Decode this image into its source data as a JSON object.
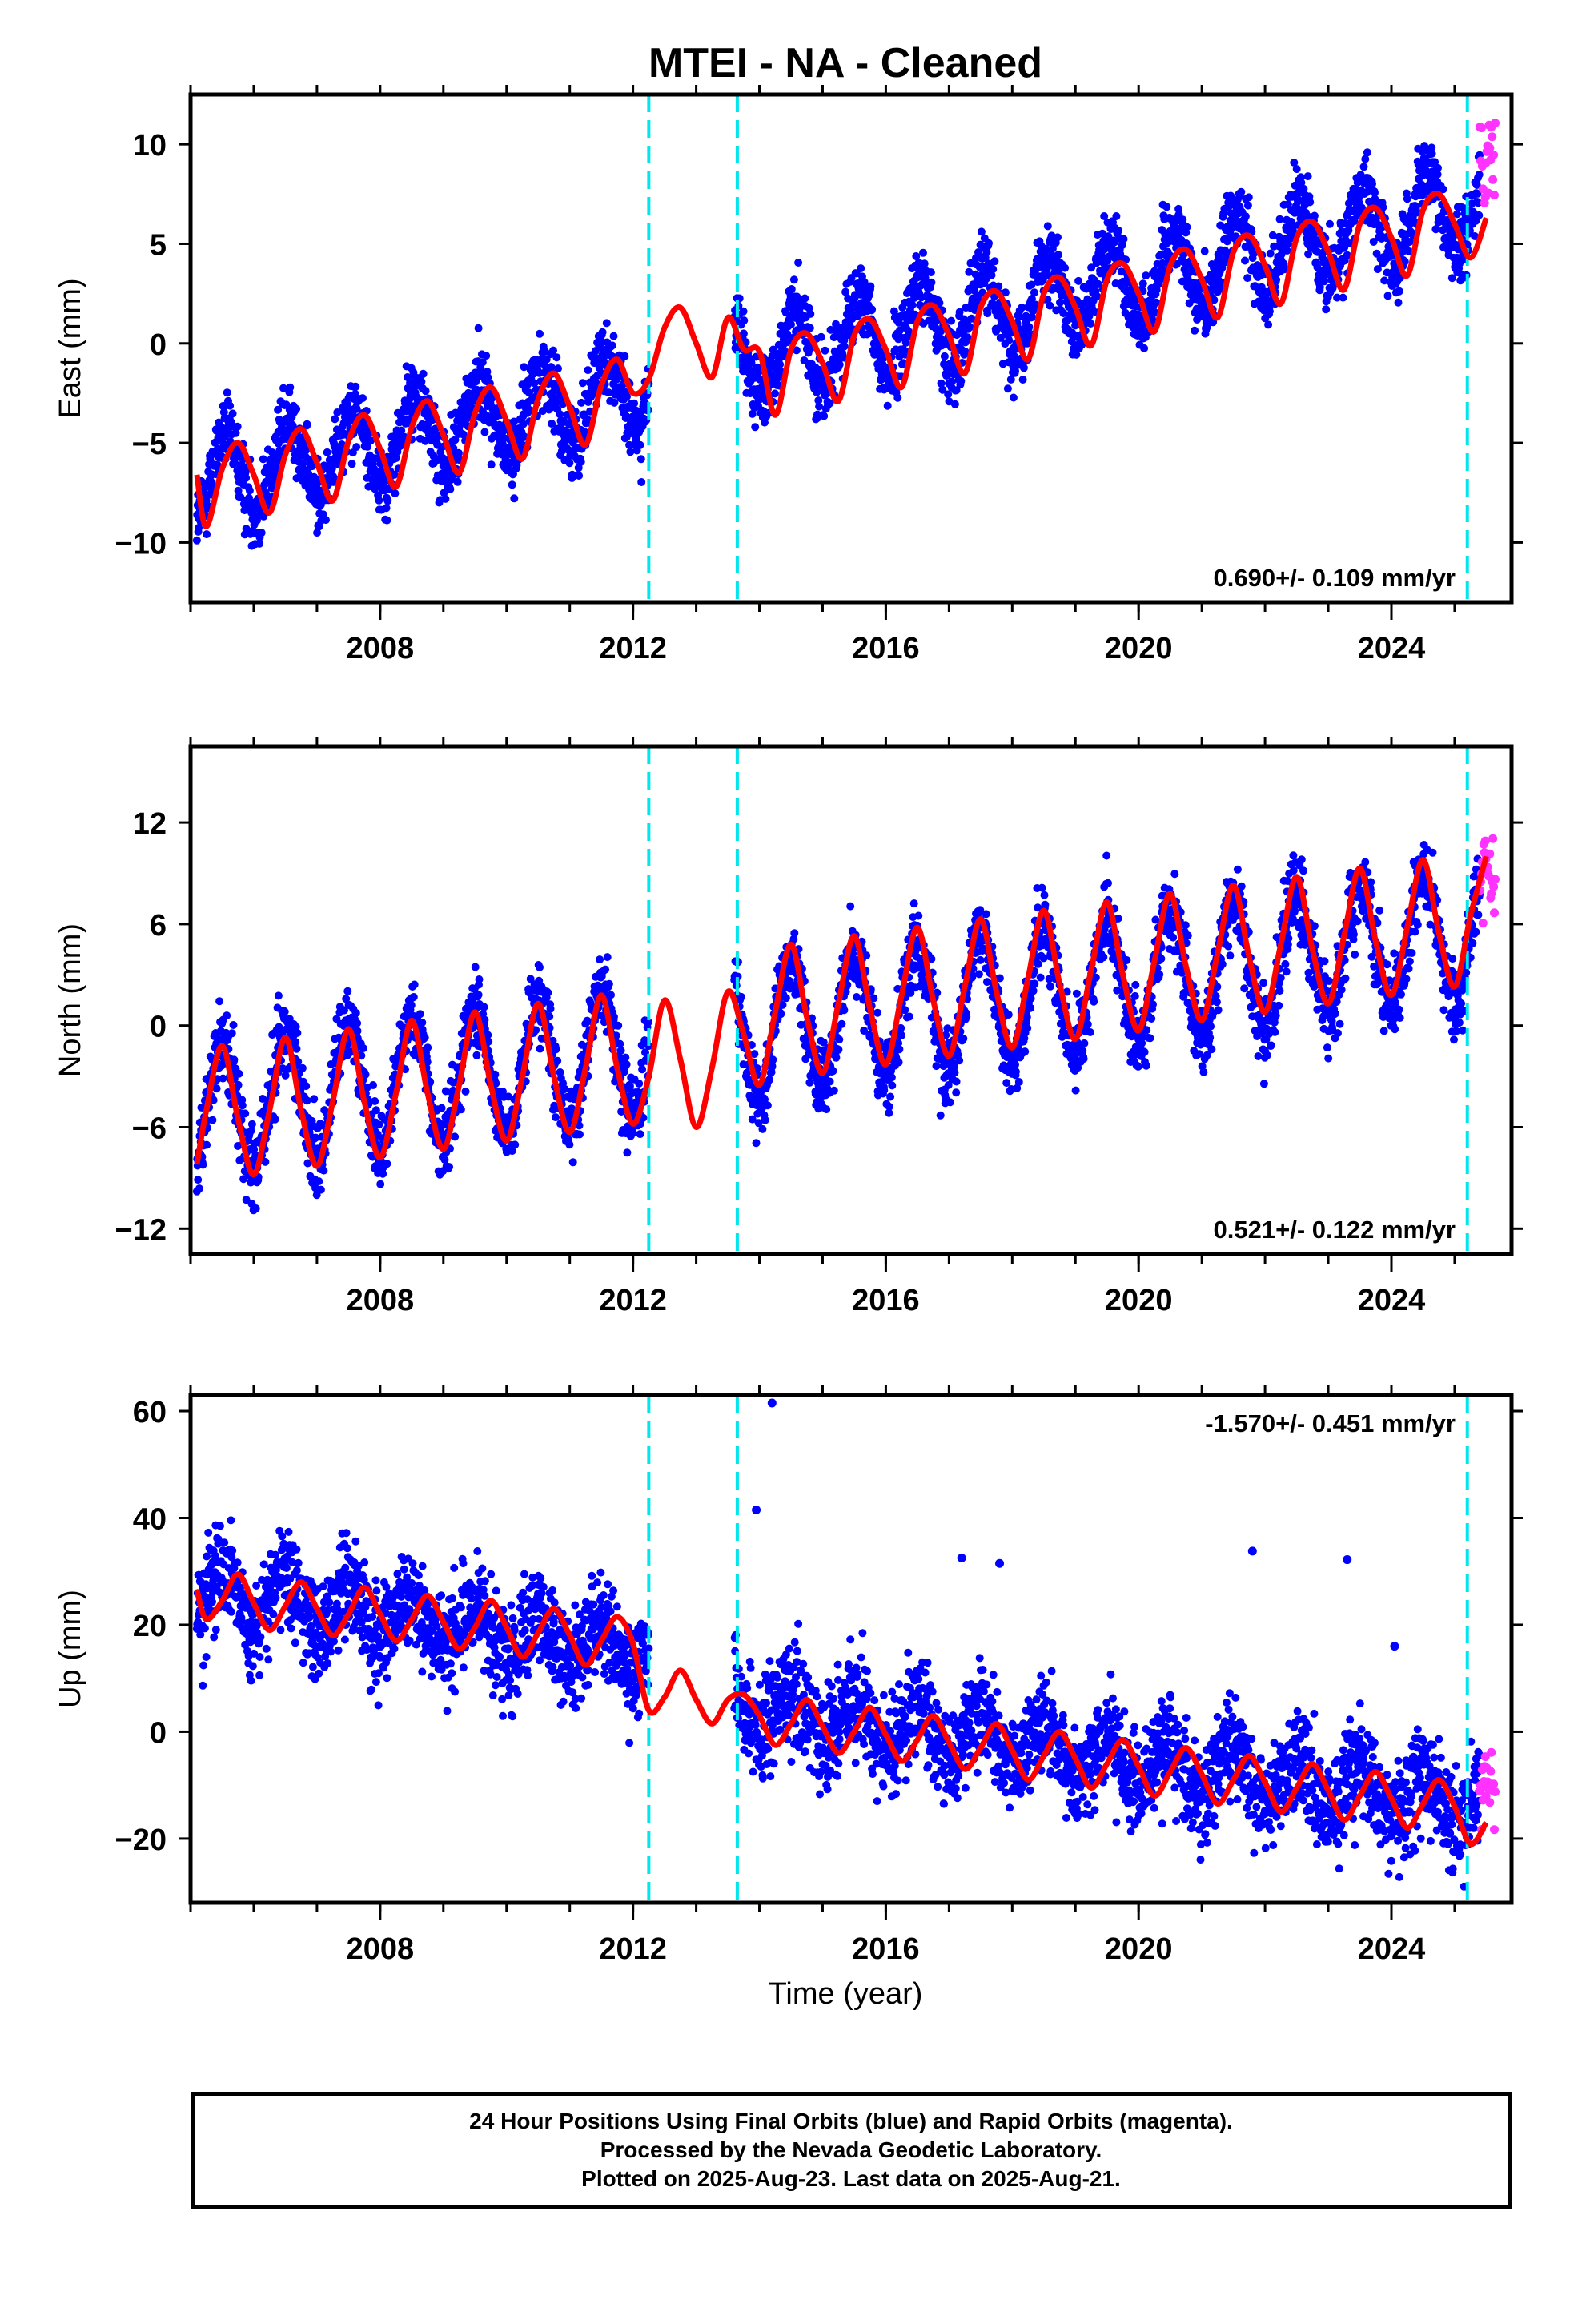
{
  "title": "MTEI  - NA - Cleaned",
  "colors": {
    "final_orbits": "#0000ff",
    "rapid_orbits": "#ff33ff",
    "model": "#ff0000",
    "offsets": "#00e5ee",
    "frame": "#000000"
  },
  "chart_data": [
    {
      "type": "scatter",
      "panel": "east",
      "ylabel": "East (mm)",
      "xlim": [
        2005.0,
        2025.9
      ],
      "ylim": [
        -13,
        12.5
      ],
      "yticks": [
        -10,
        -5,
        0,
        5,
        10
      ],
      "ytick_labels": [
        "−10",
        "−5",
        "0",
        "5",
        "10"
      ],
      "xticks": [
        2008,
        2012,
        2016,
        2020,
        2024
      ],
      "rate_label": "0.690+/- 0.109 mm/yr",
      "rate_position": "bottom-right",
      "offsets": [
        2012.25,
        2013.65,
        2025.2
      ],
      "data_span": [
        2005.1,
        2025.65
      ],
      "gap": [
        2012.25,
        2013.6
      ],
      "rapid_span": [
        2025.4,
        2025.65
      ],
      "trend": {
        "value_at_start": -7.0,
        "rate": 0.69,
        "annual_amplitude": 2.0,
        "phase_peak": 0.55
      },
      "model": {
        "x": [
          2005.1,
          2005.25,
          2005.5,
          2005.75,
          2006.0,
          2006.25,
          2006.5,
          2006.75,
          2007.0,
          2007.25,
          2007.5,
          2007.75,
          2008.0,
          2008.25,
          2008.5,
          2008.75,
          2009.0,
          2009.25,
          2009.5,
          2009.75,
          2010.0,
          2010.25,
          2010.5,
          2010.75,
          2011.0,
          2011.25,
          2011.5,
          2011.75,
          2012.0,
          2012.25,
          2012.5,
          2012.75,
          2013.0,
          2013.25,
          2013.5,
          2013.75,
          2014.0,
          2014.25,
          2014.5,
          2014.75,
          2015.0,
          2015.25,
          2015.5,
          2015.75,
          2016.0,
          2016.25,
          2016.5,
          2016.75,
          2017.0,
          2017.25,
          2017.5,
          2017.75,
          2018.0,
          2018.25,
          2018.5,
          2018.75,
          2019.0,
          2019.25,
          2019.5,
          2019.75,
          2020.0,
          2020.25,
          2020.5,
          2020.75,
          2021.0,
          2021.25,
          2021.5,
          2021.75,
          2022.0,
          2022.25,
          2022.5,
          2022.75,
          2023.0,
          2023.25,
          2023.5,
          2023.75,
          2024.0,
          2024.25,
          2024.5,
          2024.75,
          2025.0,
          2025.25,
          2025.5
        ],
        "y": [
          -6.6,
          -9.2,
          -6.3,
          -5.0,
          -6.6,
          -8.5,
          -5.6,
          -4.3,
          -6.0,
          -7.9,
          -4.9,
          -3.6,
          -5.3,
          -7.2,
          -4.2,
          -2.9,
          -4.6,
          -6.5,
          -3.5,
          -2.2,
          -3.9,
          -5.8,
          -2.8,
          -1.5,
          -3.2,
          -5.1,
          -2.1,
          -0.8,
          -2.5,
          -1.8,
          0.8,
          1.8,
          0.0,
          -1.7,
          1.3,
          -0.3,
          -0.4,
          -3.6,
          -0.3,
          0.5,
          -1.0,
          -2.9,
          0.4,
          1.2,
          -0.3,
          -2.2,
          1.1,
          1.9,
          0.4,
          -1.5,
          1.8,
          2.6,
          1.1,
          -0.8,
          2.5,
          3.3,
          1.8,
          -0.1,
          3.2,
          4.0,
          2.5,
          0.6,
          3.9,
          4.7,
          3.2,
          1.3,
          4.6,
          5.4,
          3.9,
          2.0,
          5.3,
          6.1,
          4.6,
          2.7,
          6.0,
          6.8,
          5.3,
          3.4,
          6.7,
          7.5,
          6.0,
          4.3,
          6.3
        ]
      }
    },
    {
      "type": "scatter",
      "panel": "north",
      "ylabel": "North (mm)",
      "xlim": [
        2005.0,
        2025.9
      ],
      "ylim": [
        -13.5,
        16.5
      ],
      "yticks": [
        -12,
        -6,
        0,
        6,
        12
      ],
      "ytick_labels": [
        "−12",
        "−6",
        "0",
        "6",
        "12"
      ],
      "xticks": [
        2008,
        2012,
        2016,
        2020,
        2024
      ],
      "rate_label": "0.521+/- 0.122 mm/yr",
      "rate_position": "bottom-right",
      "offsets": [
        2012.25,
        2013.65,
        2025.2
      ],
      "data_span": [
        2005.1,
        2025.65
      ],
      "gap": [
        2012.25,
        2013.6
      ],
      "rapid_span": [
        2025.4,
        2025.65
      ],
      "trend": {
        "value_at_start": -5.0,
        "rate": 0.521,
        "annual_amplitude": 3.8,
        "phase_peak": 0.5
      },
      "model": {
        "x": [
          2005.1,
          2005.25,
          2005.5,
          2005.75,
          2006.0,
          2006.25,
          2006.5,
          2006.75,
          2007.0,
          2007.25,
          2007.5,
          2007.75,
          2008.0,
          2008.25,
          2008.5,
          2008.75,
          2009.0,
          2009.25,
          2009.5,
          2009.75,
          2010.0,
          2010.25,
          2010.5,
          2010.75,
          2011.0,
          2011.25,
          2011.5,
          2011.75,
          2012.0,
          2012.25,
          2012.5,
          2012.75,
          2013.0,
          2013.25,
          2013.5,
          2013.75,
          2014.0,
          2014.25,
          2014.5,
          2014.75,
          2015.0,
          2015.25,
          2015.5,
          2015.75,
          2016.0,
          2016.25,
          2016.5,
          2016.75,
          2017.0,
          2017.25,
          2017.5,
          2017.75,
          2018.0,
          2018.25,
          2018.5,
          2018.75,
          2019.0,
          2019.25,
          2019.5,
          2019.75,
          2020.0,
          2020.25,
          2020.5,
          2020.75,
          2021.0,
          2021.25,
          2021.5,
          2021.75,
          2022.0,
          2022.25,
          2022.5,
          2022.75,
          2023.0,
          2023.25,
          2023.5,
          2023.75,
          2024.0,
          2024.25,
          2024.5,
          2024.75,
          2025.0,
          2025.25,
          2025.5
        ],
        "y": [
          -8.2,
          -5.0,
          -1.2,
          -5.5,
          -8.8,
          -5.0,
          -0.7,
          -5.0,
          -8.3,
          -4.5,
          -0.2,
          -4.5,
          -7.8,
          -4.0,
          0.3,
          -4.0,
          -7.3,
          -3.5,
          0.8,
          -3.5,
          -6.8,
          -3.0,
          1.3,
          -3.0,
          -6.3,
          -2.5,
          1.8,
          -2.5,
          -5.8,
          -3.0,
          1.5,
          -2.0,
          -6.0,
          -2.5,
          2.0,
          -0.5,
          -3.5,
          0.8,
          4.8,
          0.5,
          -2.8,
          1.3,
          5.3,
          1.0,
          -2.3,
          1.8,
          5.8,
          1.5,
          -1.8,
          2.3,
          6.3,
          2.0,
          -1.3,
          2.8,
          6.8,
          2.5,
          -0.8,
          3.3,
          7.3,
          3.0,
          -0.3,
          3.8,
          7.8,
          3.5,
          0.3,
          4.3,
          8.3,
          4.0,
          0.8,
          4.8,
          8.8,
          4.5,
          1.3,
          5.3,
          9.3,
          5.0,
          1.8,
          5.8,
          9.8,
          5.5,
          2.3,
          6.5,
          10.0
        ]
      }
    },
    {
      "type": "scatter",
      "panel": "up",
      "ylabel": "Up (mm)",
      "xlabel": "Time (year)",
      "xlim": [
        2005.0,
        2025.9
      ],
      "ylim": [
        -32,
        63
      ],
      "yticks": [
        -20,
        0,
        20,
        40,
        60
      ],
      "ytick_labels": [
        "−20",
        "0",
        "20",
        "40",
        "60"
      ],
      "xticks": [
        2008,
        2012,
        2016,
        2020,
        2024
      ],
      "rate_label": "-1.570+/- 0.451 mm/yr",
      "rate_position": "top-right",
      "offsets": [
        2012.25,
        2013.65,
        2025.2
      ],
      "data_span": [
        2005.1,
        2025.65
      ],
      "gap": [
        2012.25,
        2013.6
      ],
      "rapid_span": [
        2025.4,
        2025.65
      ],
      "trend": {
        "value_at_start": 26.0,
        "rate": -1.57,
        "annual_amplitude": 4.5,
        "phase_peak": 0.5
      },
      "outliers": [
        [
          2014.2,
          61.5
        ],
        [
          2013.95,
          41.5
        ],
        [
          2017.2,
          32.5
        ],
        [
          2017.8,
          31.5
        ],
        [
          2021.8,
          33.8
        ],
        [
          2023.3,
          32.2
        ],
        [
          2024.05,
          16.0
        ]
      ],
      "model": {
        "x": [
          2005.1,
          2005.25,
          2005.5,
          2005.75,
          2006.0,
          2006.25,
          2006.5,
          2006.75,
          2007.0,
          2007.25,
          2007.5,
          2007.75,
          2008.0,
          2008.25,
          2008.5,
          2008.75,
          2009.0,
          2009.25,
          2009.5,
          2009.75,
          2010.0,
          2010.25,
          2010.5,
          2010.75,
          2011.0,
          2011.25,
          2011.5,
          2011.75,
          2012.0,
          2012.25,
          2012.5,
          2012.75,
          2013.0,
          2013.25,
          2013.5,
          2013.75,
          2014.0,
          2014.25,
          2014.5,
          2014.75,
          2015.0,
          2015.25,
          2015.5,
          2015.75,
          2016.0,
          2016.25,
          2016.5,
          2016.75,
          2017.0,
          2017.25,
          2017.5,
          2017.75,
          2018.0,
          2018.25,
          2018.5,
          2018.75,
          2019.0,
          2019.25,
          2019.5,
          2019.75,
          2020.0,
          2020.25,
          2020.5,
          2020.75,
          2021.0,
          2021.25,
          2021.5,
          2021.75,
          2022.0,
          2022.25,
          2022.5,
          2022.75,
          2023.0,
          2023.25,
          2023.5,
          2023.75,
          2024.0,
          2024.25,
          2024.5,
          2024.75,
          2025.0,
          2025.25,
          2025.5
        ],
        "y": [
          26.5,
          21.0,
          24.5,
          29.5,
          24.0,
          19.0,
          23.5,
          28.0,
          23.0,
          18.0,
          22.0,
          27.0,
          22.0,
          17.0,
          21.0,
          25.5,
          20.5,
          15.5,
          19.5,
          24.5,
          19.5,
          14.0,
          18.5,
          23.0,
          18.0,
          12.5,
          17.0,
          21.5,
          16.5,
          4.0,
          6.5,
          11.5,
          6.0,
          1.5,
          6.0,
          7.0,
          3.0,
          -2.5,
          1.5,
          6.0,
          1.0,
          -4.0,
          0.0,
          4.5,
          -0.5,
          -5.5,
          -1.5,
          3.0,
          -2.0,
          -7.0,
          -3.0,
          1.5,
          -3.5,
          -9.0,
          -4.5,
          0.0,
          -5.0,
          -10.5,
          -6.0,
          -1.5,
          -6.5,
          -12.0,
          -7.5,
          -3.0,
          -8.0,
          -13.5,
          -9.0,
          -4.5,
          -9.5,
          -15.0,
          -10.5,
          -6.0,
          -11.0,
          -16.5,
          -12.0,
          -7.5,
          -12.5,
          -18.0,
          -13.5,
          -9.0,
          -14.0,
          -21.0,
          -17.0
        ]
      }
    }
  ],
  "footer": {
    "line1": "24 Hour Positions Using Final Orbits (blue) and Rapid Orbits (magenta).",
    "line2": "Processed by the Nevada Geodetic Laboratory.",
    "line3": "Plotted on 2025-Aug-23. Last data on 2025-Aug-21."
  }
}
